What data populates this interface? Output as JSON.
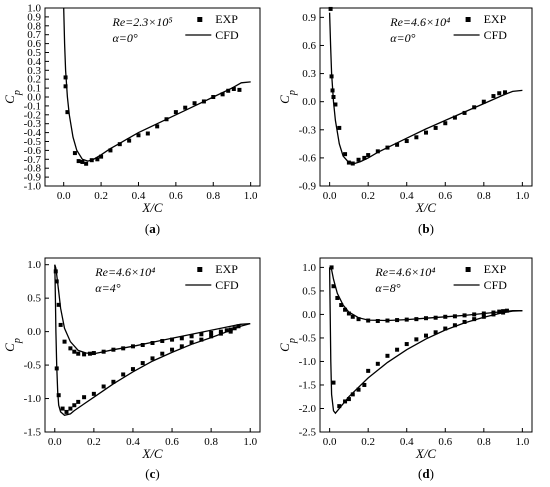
{
  "chart_data": [
    {
      "panel": "a",
      "type": "scatter",
      "caption": "(a)",
      "xlabel": "X/C",
      "ylabel": "Cp",
      "xlim": [
        -0.1,
        1.05
      ],
      "ylim": [
        -1.0,
        1.0
      ],
      "xticks": [
        "0.0",
        "0.2",
        "0.4",
        "0.6",
        "0.8",
        "1.0"
      ],
      "xtick_values": [
        0.0,
        0.2,
        0.4,
        0.6,
        0.8,
        1.0
      ],
      "yticks": [
        "-1.0",
        "-0.9",
        "-0.8",
        "-0.7",
        "-0.6",
        "-0.5",
        "-0.4",
        "-0.3",
        "-0.2",
        "-0.1",
        "0.0",
        "0.1",
        "0.2",
        "0.3",
        "0.4",
        "0.5",
        "0.6",
        "0.7",
        "0.8",
        "0.9",
        "1.0"
      ],
      "ytick_values": [
        -1.0,
        -0.9,
        -0.8,
        -0.7,
        -0.6,
        -0.5,
        -0.4,
        -0.3,
        -0.2,
        -0.1,
        0.0,
        0.1,
        0.2,
        0.3,
        0.4,
        0.5,
        0.6,
        0.7,
        0.8,
        0.9,
        1.0
      ],
      "annotations": [
        "Re=2.3×10⁵",
        "α=0°"
      ],
      "legend": [
        "EXP",
        "CFD"
      ],
      "legend_position": "top-right",
      "series": [
        {
          "name": "EXP",
          "kind": "markers",
          "x": [
            0.01,
            0.01,
            0.02,
            0.06,
            0.08,
            0.1,
            0.12,
            0.15,
            0.18,
            0.2,
            0.25,
            0.3,
            0.35,
            0.4,
            0.45,
            0.5,
            0.55,
            0.6,
            0.65,
            0.7,
            0.75,
            0.8,
            0.85,
            0.88,
            0.91,
            0.94
          ],
          "y": [
            0.22,
            0.12,
            -0.17,
            -0.63,
            -0.72,
            -0.73,
            -0.75,
            -0.71,
            -0.7,
            -0.67,
            -0.6,
            -0.53,
            -0.49,
            -0.43,
            -0.41,
            -0.33,
            -0.25,
            -0.17,
            -0.12,
            -0.07,
            -0.05,
            0.0,
            0.03,
            0.07,
            0.09,
            0.08
          ]
        },
        {
          "name": "CFD",
          "kind": "line",
          "x": [
            0.0,
            0.005,
            0.01,
            0.02,
            0.03,
            0.05,
            0.07,
            0.1,
            0.13,
            0.16,
            0.2,
            0.25,
            0.3,
            0.35,
            0.4,
            0.5,
            0.6,
            0.7,
            0.8,
            0.9,
            0.95,
            1.0
          ],
          "y": [
            1.0,
            0.6,
            0.3,
            0.0,
            -0.2,
            -0.45,
            -0.6,
            -0.7,
            -0.72,
            -0.7,
            -0.65,
            -0.58,
            -0.52,
            -0.46,
            -0.4,
            -0.3,
            -0.2,
            -0.1,
            0.0,
            0.1,
            0.16,
            0.17
          ]
        }
      ]
    },
    {
      "panel": "b",
      "type": "scatter",
      "caption": "(b)",
      "xlabel": "X/C",
      "ylabel": "Cp",
      "xlim": [
        -0.05,
        1.05
      ],
      "ylim": [
        -0.9,
        1.0
      ],
      "xticks": [
        "0.0",
        "0.2",
        "0.4",
        "0.6",
        "0.8",
        "1.0"
      ],
      "xtick_values": [
        0.0,
        0.2,
        0.4,
        0.6,
        0.8,
        1.0
      ],
      "yticks": [
        "-0.9",
        "-0.6",
        "-0.3",
        "0.0",
        "0.3",
        "0.6",
        "0.9"
      ],
      "ytick_values": [
        -0.9,
        -0.6,
        -0.3,
        0.0,
        0.3,
        0.6,
        0.9
      ],
      "annotations": [
        "Re=4.6×10⁴",
        "α=0°"
      ],
      "legend": [
        "EXP",
        "CFD"
      ],
      "legend_position": "top-right",
      "series": [
        {
          "name": "EXP",
          "kind": "markers",
          "x": [
            0.005,
            0.01,
            0.015,
            0.02,
            0.03,
            0.05,
            0.08,
            0.1,
            0.12,
            0.15,
            0.18,
            0.2,
            0.25,
            0.3,
            0.35,
            0.4,
            0.45,
            0.5,
            0.55,
            0.6,
            0.65,
            0.7,
            0.75,
            0.8,
            0.85,
            0.88,
            0.91
          ],
          "y": [
            0.99,
            0.27,
            0.12,
            0.05,
            -0.03,
            -0.28,
            -0.56,
            -0.65,
            -0.66,
            -0.62,
            -0.6,
            -0.57,
            -0.53,
            -0.49,
            -0.46,
            -0.42,
            -0.38,
            -0.33,
            -0.28,
            -0.23,
            -0.17,
            -0.12,
            -0.06,
            0.0,
            0.06,
            0.09,
            0.1
          ]
        },
        {
          "name": "CFD",
          "kind": "line",
          "x": [
            0.0,
            0.005,
            0.01,
            0.02,
            0.03,
            0.05,
            0.07,
            0.1,
            0.13,
            0.16,
            0.2,
            0.25,
            0.3,
            0.4,
            0.5,
            0.6,
            0.7,
            0.8,
            0.9,
            0.95,
            1.0
          ],
          "y": [
            0.95,
            0.6,
            0.3,
            0.0,
            -0.2,
            -0.45,
            -0.58,
            -0.65,
            -0.66,
            -0.64,
            -0.6,
            -0.54,
            -0.49,
            -0.39,
            -0.29,
            -0.2,
            -0.11,
            -0.02,
            0.07,
            0.11,
            0.12
          ]
        }
      ]
    },
    {
      "panel": "c",
      "type": "scatter",
      "caption": "(c)",
      "xlabel": "X/C",
      "ylabel": "Cp",
      "xlim": [
        -0.05,
        1.05
      ],
      "ylim": [
        -1.5,
        1.1
      ],
      "xticks": [
        "0.0",
        "0.2",
        "0.4",
        "0.6",
        "0.8",
        "1.0"
      ],
      "xtick_values": [
        0.0,
        0.2,
        0.4,
        0.6,
        0.8,
        1.0
      ],
      "yticks": [
        "-1.5",
        "-1.0",
        "-0.5",
        "0.0",
        "0.5",
        "1.0"
      ],
      "ytick_values": [
        -1.5,
        -1.0,
        -0.5,
        0.0,
        0.5,
        1.0
      ],
      "annotations": [
        "Re=4.6×10⁴",
        "α=4°"
      ],
      "legend": [
        "EXP",
        "CFD"
      ],
      "legend_position": "top-right",
      "series": [
        {
          "name": "EXP (upper)",
          "kind": "markers",
          "x": [
            0.005,
            0.01,
            0.02,
            0.03,
            0.05,
            0.08,
            0.1,
            0.12,
            0.15,
            0.18,
            0.2,
            0.25,
            0.3,
            0.35,
            0.4,
            0.45,
            0.5,
            0.55,
            0.6,
            0.65,
            0.7,
            0.75,
            0.8,
            0.85,
            0.88,
            0.9,
            0.92,
            0.94
          ],
          "y": [
            0.9,
            0.75,
            0.4,
            0.1,
            -0.15,
            -0.25,
            -0.3,
            -0.33,
            -0.34,
            -0.33,
            -0.32,
            -0.3,
            -0.27,
            -0.25,
            -0.22,
            -0.2,
            -0.17,
            -0.14,
            -0.12,
            -0.1,
            -0.07,
            -0.04,
            -0.02,
            0.0,
            0.02,
            0.03,
            0.05,
            0.08
          ]
        },
        {
          "name": "EXP (lower)",
          "kind": "markers",
          "x": [
            0.01,
            0.02,
            0.04,
            0.06,
            0.08,
            0.1,
            0.12,
            0.15,
            0.2,
            0.25,
            0.3,
            0.35,
            0.4,
            0.45,
            0.5,
            0.55,
            0.6,
            0.65,
            0.7,
            0.75,
            0.8,
            0.85,
            0.9
          ],
          "y": [
            -0.55,
            -0.95,
            -1.15,
            -1.2,
            -1.15,
            -1.1,
            -1.05,
            -0.98,
            -0.93,
            -0.82,
            -0.75,
            -0.64,
            -0.56,
            -0.47,
            -0.4,
            -0.33,
            -0.27,
            -0.22,
            -0.16,
            -0.12,
            -0.07,
            -0.03,
            0.0
          ]
        },
        {
          "name": "CFD (upper)",
          "kind": "line",
          "x": [
            0.0,
            0.005,
            0.01,
            0.02,
            0.03,
            0.05,
            0.08,
            0.12,
            0.16,
            0.2,
            0.25,
            0.3,
            0.4,
            0.5,
            0.6,
            0.7,
            0.8,
            0.9,
            0.95,
            1.0
          ],
          "y": [
            1.0,
            0.95,
            0.85,
            0.6,
            0.35,
            0.05,
            -0.15,
            -0.28,
            -0.32,
            -0.33,
            -0.3,
            -0.27,
            -0.22,
            -0.16,
            -0.1,
            -0.04,
            0.02,
            0.08,
            0.11,
            0.12
          ]
        },
        {
          "name": "CFD (lower)",
          "kind": "line",
          "x": [
            0.0,
            0.003,
            0.006,
            0.01,
            0.015,
            0.02,
            0.03,
            0.05,
            0.08,
            0.1,
            0.15,
            0.2,
            0.3,
            0.4,
            0.5,
            0.6,
            0.7,
            0.8,
            0.9,
            0.95,
            1.0
          ],
          "y": [
            1.0,
            0.5,
            0.0,
            -0.5,
            -0.9,
            -1.1,
            -1.2,
            -1.25,
            -1.23,
            -1.18,
            -1.08,
            -0.98,
            -0.78,
            -0.6,
            -0.44,
            -0.31,
            -0.19,
            -0.09,
            0.02,
            0.08,
            0.12
          ]
        }
      ]
    },
    {
      "panel": "d",
      "type": "scatter",
      "caption": "(d)",
      "xlabel": "X/C",
      "ylabel": "Cp",
      "xlim": [
        -0.05,
        1.05
      ],
      "ylim": [
        -2.5,
        1.2
      ],
      "xticks": [
        "0.0",
        "0.2",
        "0.4",
        "0.6",
        "0.8",
        "1.0"
      ],
      "xtick_values": [
        0.0,
        0.2,
        0.4,
        0.6,
        0.8,
        1.0
      ],
      "yticks": [
        "-2.5",
        "-2.0",
        "-1.5",
        "-1.0",
        "-0.5",
        "0.0",
        "0.5",
        "1.0"
      ],
      "ytick_values": [
        -2.5,
        -2.0,
        -1.5,
        -1.0,
        -0.5,
        0.0,
        0.5,
        1.0
      ],
      "annotations": [
        "Re=4.6×10⁴",
        "α=8°"
      ],
      "legend": [
        "EXP",
        "CFD"
      ],
      "legend_position": "top-right",
      "series": [
        {
          "name": "EXP (upper)",
          "kind": "markers",
          "x": [
            0.01,
            0.02,
            0.04,
            0.06,
            0.08,
            0.1,
            0.12,
            0.15,
            0.2,
            0.25,
            0.3,
            0.35,
            0.4,
            0.45,
            0.5,
            0.55,
            0.6,
            0.65,
            0.7,
            0.75,
            0.8,
            0.85,
            0.88,
            0.9,
            0.92
          ],
          "y": [
            1.0,
            0.6,
            0.35,
            0.2,
            0.1,
            0.02,
            -0.05,
            -0.1,
            -0.13,
            -0.14,
            -0.13,
            -0.12,
            -0.11,
            -0.1,
            -0.08,
            -0.07,
            -0.05,
            -0.04,
            -0.02,
            0.0,
            0.02,
            0.04,
            0.06,
            0.07,
            0.08
          ]
        },
        {
          "name": "EXP (lower)",
          "kind": "markers",
          "x": [
            0.02,
            0.05,
            0.08,
            0.1,
            0.12,
            0.15,
            0.18,
            0.2,
            0.25,
            0.3,
            0.35,
            0.4,
            0.45,
            0.5,
            0.55,
            0.6,
            0.65,
            0.7,
            0.75,
            0.8,
            0.85,
            0.9
          ],
          "y": [
            -1.45,
            -1.95,
            -1.85,
            -1.8,
            -1.7,
            -1.6,
            -1.5,
            -1.2,
            -1.05,
            -0.88,
            -0.75,
            -0.63,
            -0.53,
            -0.45,
            -0.38,
            -0.3,
            -0.23,
            -0.16,
            -0.1,
            -0.05,
            0.0,
            0.04
          ]
        },
        {
          "name": "CFD (upper)",
          "kind": "line",
          "x": [
            0.0,
            0.01,
            0.02,
            0.04,
            0.07,
            0.1,
            0.15,
            0.2,
            0.3,
            0.4,
            0.5,
            0.6,
            0.7,
            0.8,
            0.9,
            0.95,
            1.0
          ],
          "y": [
            1.0,
            0.95,
            0.75,
            0.45,
            0.2,
            0.05,
            -0.07,
            -0.12,
            -0.13,
            -0.11,
            -0.08,
            -0.05,
            -0.02,
            0.02,
            0.06,
            0.08,
            0.08
          ]
        },
        {
          "name": "CFD (lower)",
          "kind": "line",
          "x": [
            0.0,
            0.003,
            0.006,
            0.01,
            0.02,
            0.03,
            0.05,
            0.08,
            0.1,
            0.15,
            0.2,
            0.3,
            0.4,
            0.5,
            0.6,
            0.7,
            0.8,
            0.9,
            0.95,
            1.0
          ],
          "y": [
            1.0,
            0.0,
            -1.0,
            -1.7,
            -2.05,
            -2.1,
            -2.0,
            -1.85,
            -1.75,
            -1.55,
            -1.35,
            -1.02,
            -0.75,
            -0.52,
            -0.33,
            -0.18,
            -0.06,
            0.04,
            0.07,
            0.08
          ]
        }
      ]
    }
  ]
}
